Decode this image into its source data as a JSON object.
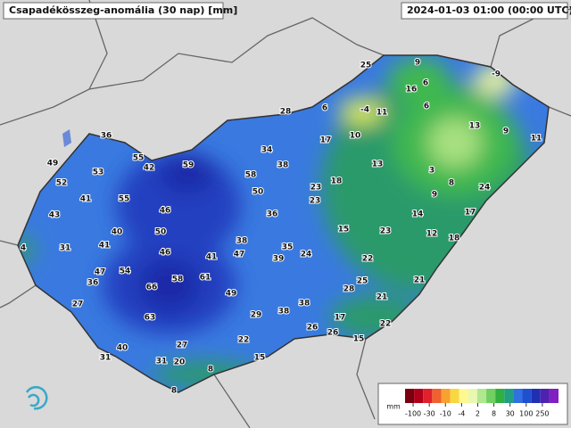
{
  "header": {
    "title": "Csapadékösszeg-anomália (30 nap) [mm]",
    "time": "2024-01-03 01:00 (00:00 UTC)"
  },
  "stations": [
    25,
    9,
    -9,
    6,
    16,
    28,
    6,
    -4,
    11,
    6,
    13,
    9,
    11,
    36,
    17,
    10,
    34,
    55,
    42,
    59,
    38,
    13,
    3,
    49,
    53,
    58,
    52,
    18,
    8,
    24,
    23,
    50,
    9,
    41,
    55,
    23,
    46,
    36,
    14,
    17,
    43,
    50,
    15,
    23,
    12,
    40,
    38,
    18,
    31,
    41,
    35,
    24,
    4,
    46,
    41,
    47,
    39,
    22,
    47,
    54,
    36,
    58,
    61,
    25,
    21,
    66,
    28,
    49,
    21,
    27,
    38,
    29,
    38,
    17,
    63,
    26,
    22,
    26,
    15,
    22,
    27,
    40,
    31,
    15,
    31,
    20,
    8,
    8
  ],
  "legend": {
    "unit": "mm",
    "ticks": [
      -100,
      -30,
      -10,
      -4,
      2,
      8,
      30,
      100,
      250
    ],
    "colors": [
      "#7a0010",
      "#b0001a",
      "#e0202a",
      "#f06030",
      "#f8a030",
      "#f8d840",
      "#fff890",
      "#e8f8b0",
      "#b0e890",
      "#70d060",
      "#30b040",
      "#20a080",
      "#3070e0",
      "#2050d0",
      "#2030b0",
      "#5020b0",
      "#8020c0"
    ]
  }
}
